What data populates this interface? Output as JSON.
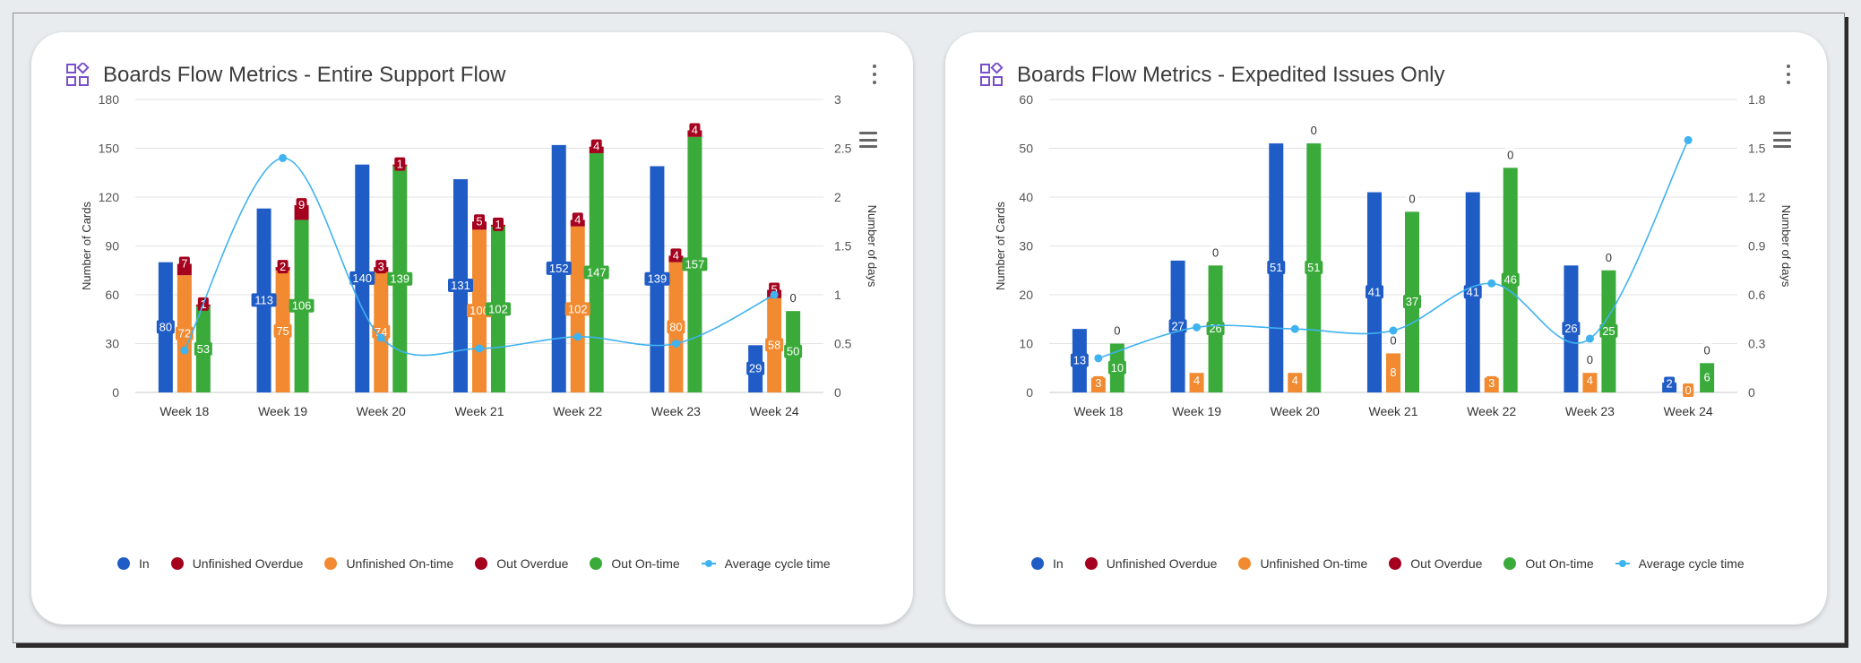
{
  "colors": {
    "in": "#1f5cc6",
    "unfinished_overdue": "#a5001e",
    "unfinished_ontime": "#f18a30",
    "out_overdue": "#a5001e",
    "out_ontime": "#3aab3a",
    "avg_cycle": "#3fb2f0"
  },
  "icons": {
    "panel_icon": "widgets-icon",
    "menu": "kebab-menu-icon",
    "chart_menu": "hamburger-menu-icon"
  },
  "panels": [
    {
      "title": "Boards Flow Metrics - Entire Support Flow",
      "ylabel_left": "Number of Cards",
      "ylabel_right": "Number of days",
      "left_ticks": [
        "0",
        "30",
        "60",
        "90",
        "120",
        "150",
        "180"
      ],
      "right_ticks": [
        "0",
        "0.5",
        "1",
        "1.5",
        "2",
        "2.5",
        "3"
      ],
      "legend": [
        "In",
        "Unfinished Overdue",
        "Unfinished On-time",
        "Out Overdue",
        "Out On-time",
        "Average cycle time"
      ]
    },
    {
      "title": "Boards Flow Metrics - Expedited Issues Only",
      "ylabel_left": "Number of Cards",
      "ylabel_right": "Number of days",
      "left_ticks": [
        "0",
        "10",
        "20",
        "30",
        "40",
        "50",
        "60"
      ],
      "right_ticks": [
        "0",
        "0.3",
        "0.6",
        "0.9",
        "1.2",
        "1.5",
        "1.8"
      ],
      "legend": [
        "In",
        "Unfinished Overdue",
        "Unfinished On-time",
        "Out Overdue",
        "Out On-time",
        "Average cycle time"
      ]
    }
  ],
  "chart_data": [
    {
      "type": "bar",
      "title": "Boards Flow Metrics - Entire Support Flow",
      "categories": [
        "Week 18",
        "Week 19",
        "Week 20",
        "Week 21",
        "Week 22",
        "Week 23",
        "Week 24"
      ],
      "ylabel": "Number of Cards",
      "y2label": "Number of days",
      "ylim": [
        0,
        180
      ],
      "y2lim": [
        0,
        3
      ],
      "series": [
        {
          "name": "In",
          "values": [
            80,
            113,
            140,
            131,
            152,
            139,
            29
          ]
        },
        {
          "name": "Unfinished Overdue",
          "values": [
            7,
            2,
            3,
            5,
            4,
            4,
            5
          ]
        },
        {
          "name": "Unfinished On-time",
          "values": [
            72,
            75,
            74,
            100,
            102,
            80,
            58
          ]
        },
        {
          "name": "Out Overdue",
          "values": [
            1,
            9,
            1,
            1,
            4,
            4,
            0
          ]
        },
        {
          "name": "Out On-time",
          "values": [
            53,
            106,
            139,
            102,
            147,
            157,
            50
          ]
        },
        {
          "name": "Average cycle time",
          "values": [
            0.43,
            2.4,
            0.56,
            0.45,
            0.57,
            0.5,
            1.0
          ]
        }
      ]
    },
    {
      "type": "bar",
      "title": "Boards Flow Metrics - Expedited Issues Only",
      "categories": [
        "Week 18",
        "Week 19",
        "Week 20",
        "Week 21",
        "Week 22",
        "Week 23",
        "Week 24"
      ],
      "ylabel": "Number of Cards",
      "y2label": "Number of days",
      "ylim": [
        0,
        60
      ],
      "y2lim": [
        0,
        1.8
      ],
      "series": [
        {
          "name": "In",
          "values": [
            13,
            27,
            51,
            41,
            41,
            26,
            2
          ]
        },
        {
          "name": "Unfinished Overdue",
          "values": [
            0,
            0,
            0,
            0,
            0,
            0,
            0
          ]
        },
        {
          "name": "Unfinished On-time",
          "values": [
            3,
            4,
            4,
            8,
            3,
            4,
            0
          ]
        },
        {
          "name": "Out Overdue",
          "values": [
            0,
            0,
            0,
            0,
            0,
            0,
            0
          ]
        },
        {
          "name": "Out On-time",
          "values": [
            10,
            26,
            51,
            37,
            46,
            25,
            6
          ]
        },
        {
          "name": "Average cycle time",
          "values": [
            0.21,
            0.4,
            0.39,
            0.38,
            0.67,
            0.33,
            1.55
          ]
        }
      ],
      "label_overrides": {
        "Unfinished Overdue": [
          "",
          "",
          "",
          "0",
          "",
          "0",
          ""
        ],
        "Out Overdue": [
          "0",
          "0",
          "0",
          "0",
          "0",
          "0",
          "0"
        ]
      }
    }
  ]
}
